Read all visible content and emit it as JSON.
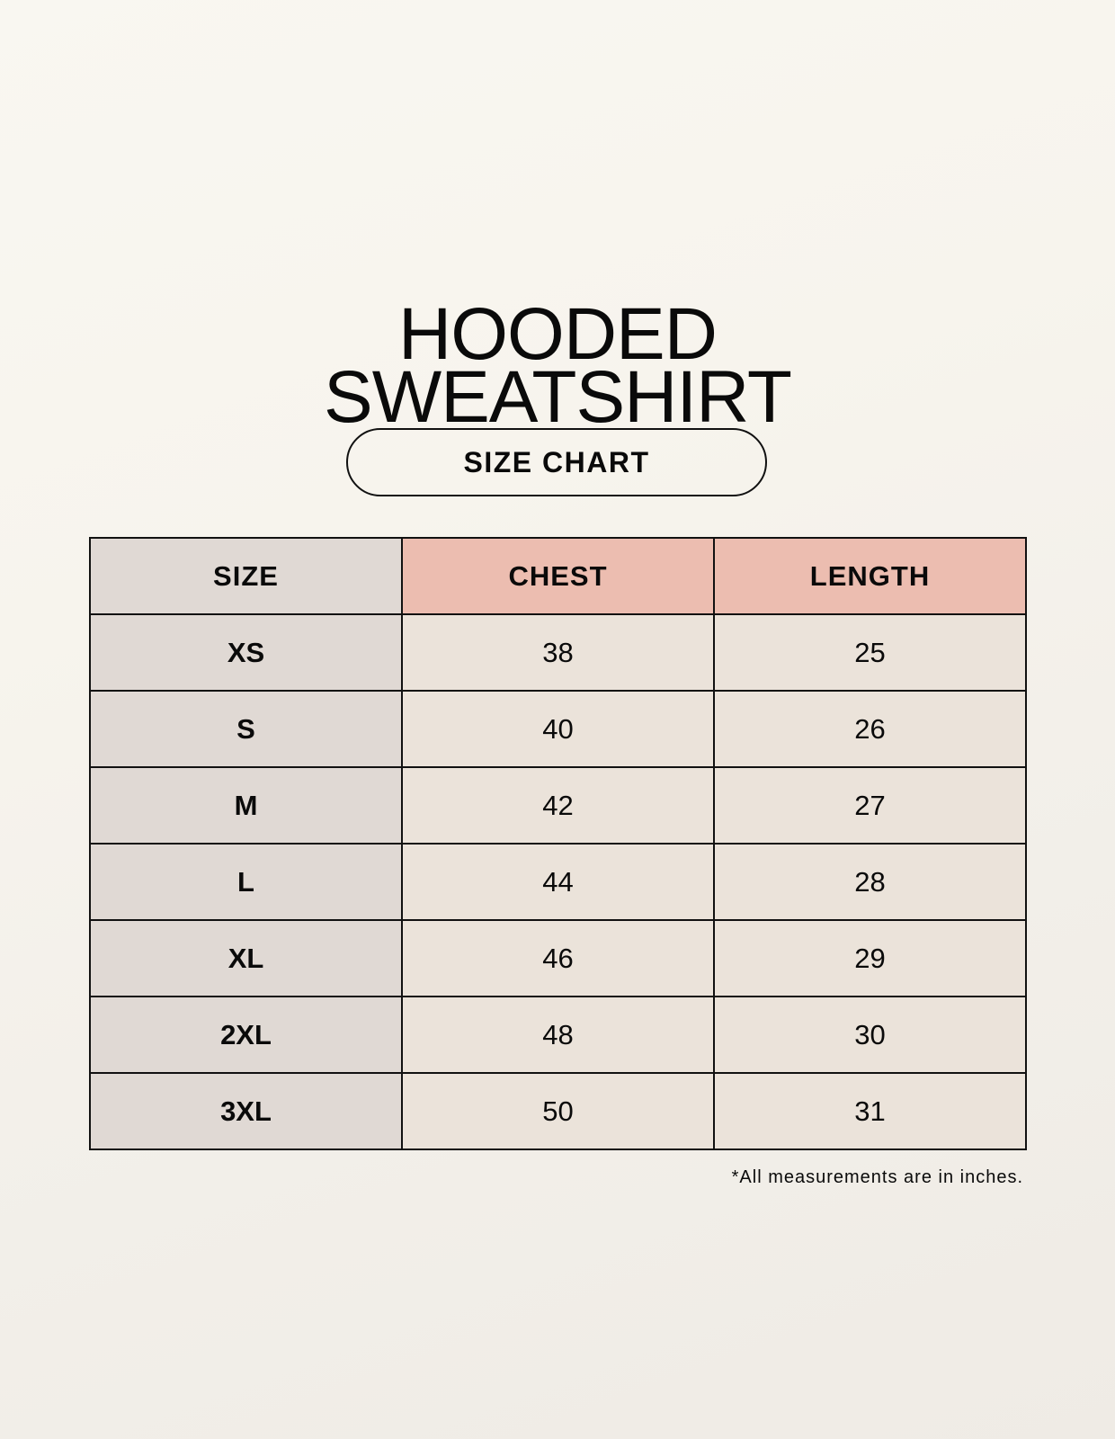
{
  "title": {
    "line1": "HOODED",
    "line2": "SWEATSHIRT"
  },
  "badge": "SIZE CHART",
  "table": {
    "headers": [
      "SIZE",
      "CHEST",
      "LENGTH"
    ],
    "rows": [
      [
        "XS",
        "38",
        "25"
      ],
      [
        "S",
        "40",
        "26"
      ],
      [
        "M",
        "42",
        "27"
      ],
      [
        "L",
        "44",
        "28"
      ],
      [
        "XL",
        "46",
        "29"
      ],
      [
        "2XL",
        "48",
        "30"
      ],
      [
        "3XL",
        "50",
        "31"
      ]
    ]
  },
  "footnote": "*All measurements are in inches.",
  "colors": {
    "header_accent": "#ecbdb0",
    "size_column": "#e0d9d4",
    "value_cells": "#ebe3da"
  }
}
